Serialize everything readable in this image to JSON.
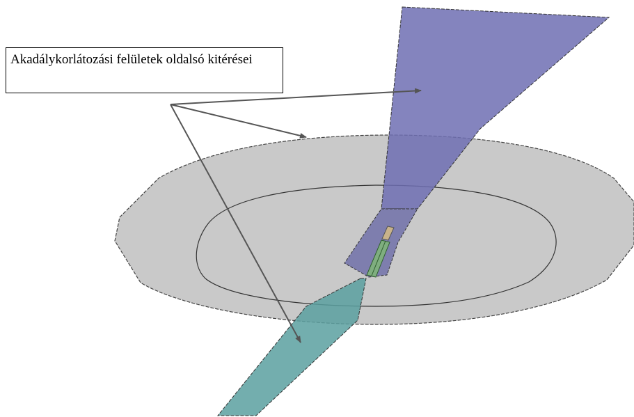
{
  "callout": {
    "text": "Akadálykorlátozási felületek oldalsó kitérései"
  }
}
